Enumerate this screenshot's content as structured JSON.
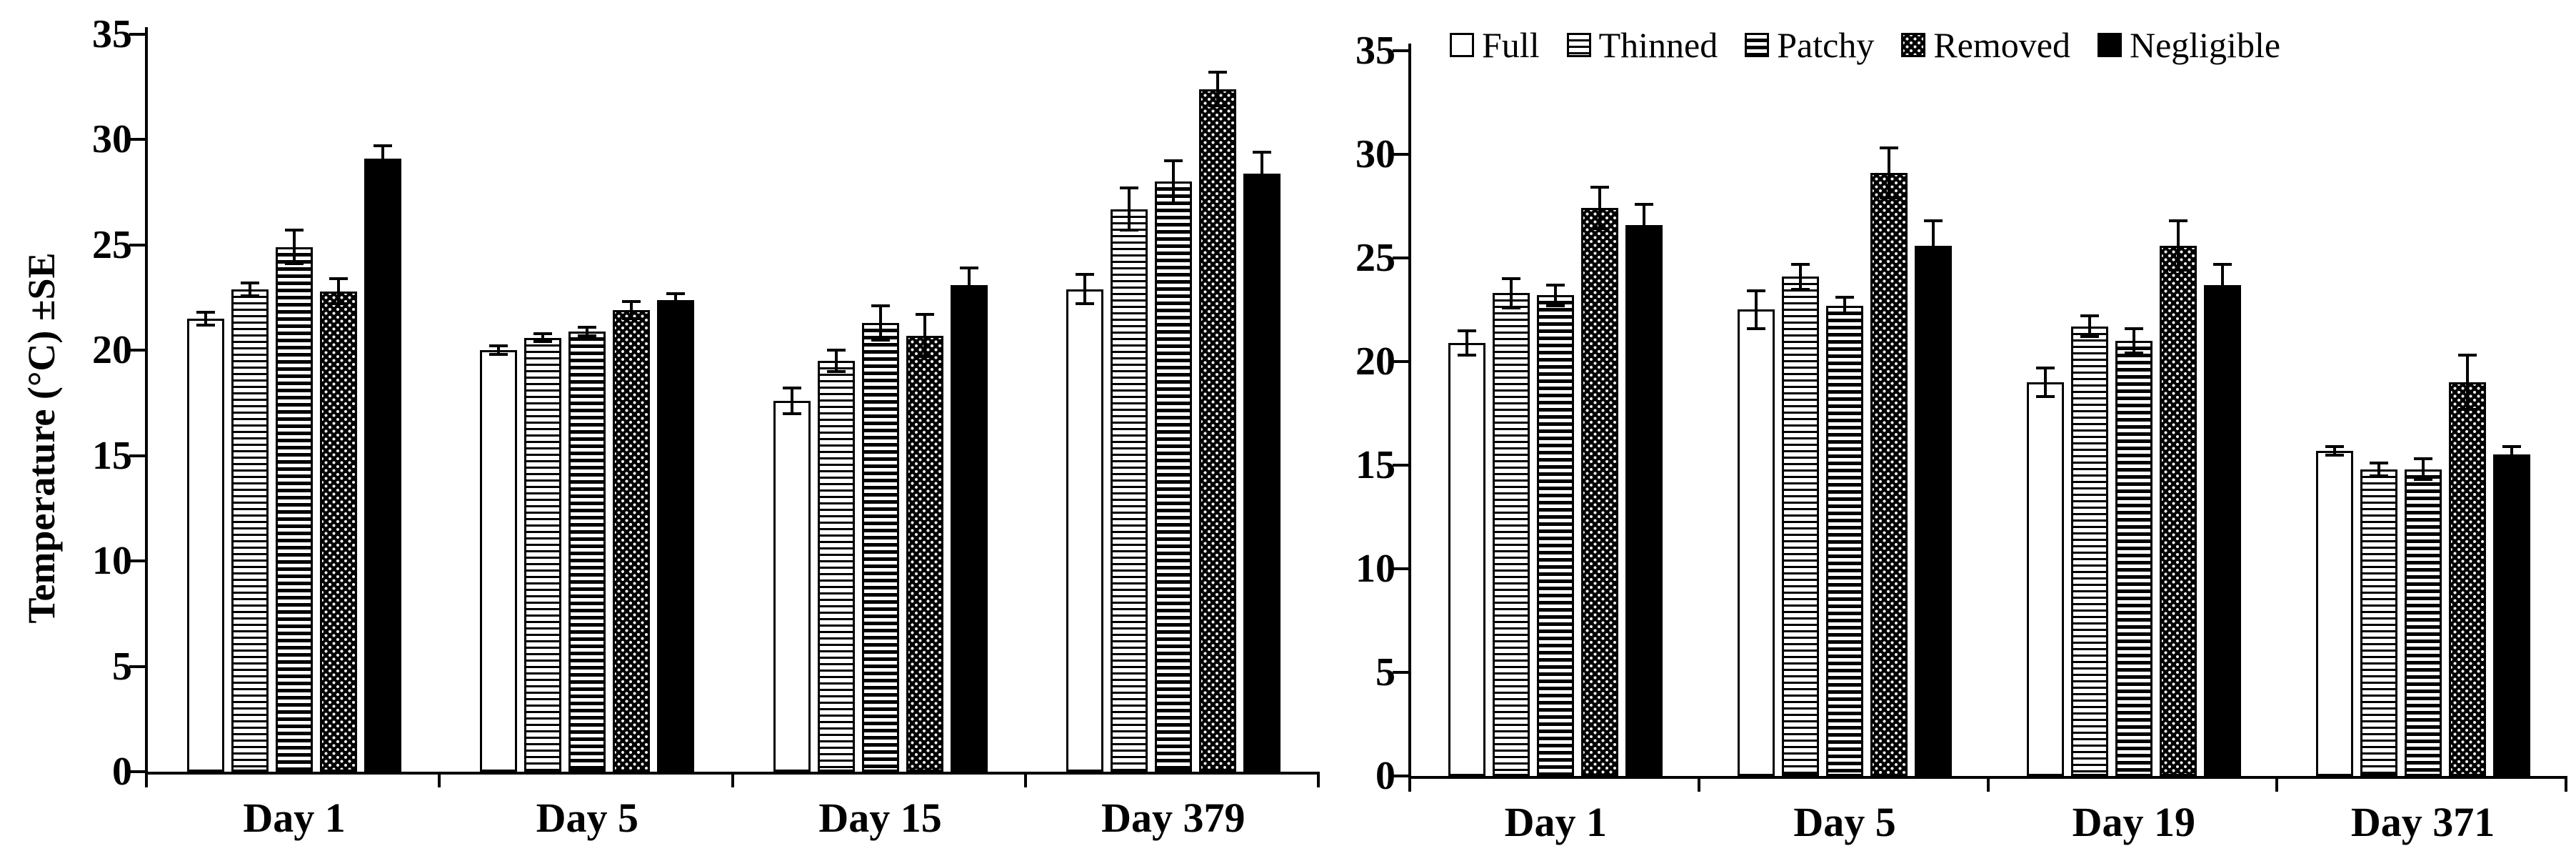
{
  "figure": {
    "ylabel": "Temperature (°C) ±SE",
    "background_color": "#ffffff",
    "ink_color": "#000000",
    "legend": {
      "position": "top-right-panel",
      "entries": [
        {
          "label": "Full",
          "pattern": "open"
        },
        {
          "label": "Thinned",
          "pattern": "h-lines-fine"
        },
        {
          "label": "Patchy",
          "pattern": "h-lines-coarse"
        },
        {
          "label": "Removed",
          "pattern": "dots"
        },
        {
          "label": "Negligible",
          "pattern": "solid"
        }
      ]
    }
  },
  "chart_data": [
    {
      "type": "bar",
      "panel": "left",
      "title": "",
      "xlabel": "",
      "ylabel": "Temperature (°C) ±SE",
      "ylim": [
        0,
        35
      ],
      "yticks": [
        0,
        5,
        10,
        15,
        20,
        25,
        30,
        35
      ],
      "grid": false,
      "error_bars": "±SE",
      "categories": [
        "Day 1",
        "Day 5",
        "Day 15",
        "Day 379"
      ],
      "series": [
        {
          "name": "Full",
          "pattern": "open",
          "values": [
            21.5,
            20.0,
            17.6,
            22.9
          ],
          "se": [
            0.3,
            0.2,
            0.6,
            0.7
          ]
        },
        {
          "name": "Thinned",
          "pattern": "h-lines-fine",
          "values": [
            22.9,
            20.6,
            19.5,
            26.7
          ],
          "se": [
            0.3,
            0.2,
            0.5,
            1.0
          ]
        },
        {
          "name": "Patchy",
          "pattern": "h-lines-coarse",
          "values": [
            24.9,
            20.9,
            21.3,
            28.0
          ],
          "se": [
            0.8,
            0.2,
            0.8,
            1.0
          ]
        },
        {
          "name": "Removed",
          "pattern": "dots",
          "values": [
            22.8,
            21.9,
            20.7,
            32.4
          ],
          "se": [
            0.6,
            0.4,
            1.0,
            0.8
          ]
        },
        {
          "name": "Negligible",
          "pattern": "solid",
          "values": [
            29.1,
            22.4,
            23.1,
            28.4
          ],
          "se": [
            0.6,
            0.3,
            0.8,
            1.0
          ]
        }
      ]
    },
    {
      "type": "bar",
      "panel": "right",
      "title": "",
      "xlabel": "",
      "ylabel": "Temperature (°C) ±SE",
      "ylim": [
        0,
        35
      ],
      "yticks": [
        0,
        5,
        10,
        15,
        20,
        25,
        30,
        35
      ],
      "grid": false,
      "error_bars": "±SE",
      "categories": [
        "Day 1",
        "Day 5",
        "Day 19",
        "Day 371"
      ],
      "series": [
        {
          "name": "Full",
          "pattern": "open",
          "values": [
            20.9,
            22.5,
            19.0,
            15.7
          ],
          "se": [
            0.6,
            0.9,
            0.7,
            0.2
          ]
        },
        {
          "name": "Thinned",
          "pattern": "h-lines-fine",
          "values": [
            23.3,
            24.1,
            21.7,
            14.8
          ],
          "se": [
            0.7,
            0.6,
            0.5,
            0.3
          ]
        },
        {
          "name": "Patchy",
          "pattern": "h-lines-coarse",
          "values": [
            23.2,
            22.7,
            21.0,
            14.8
          ],
          "se": [
            0.5,
            0.4,
            0.6,
            0.5
          ]
        },
        {
          "name": "Removed",
          "pattern": "dots",
          "values": [
            27.4,
            29.1,
            25.6,
            19.0
          ],
          "se": [
            1.0,
            1.2,
            1.2,
            1.3
          ]
        },
        {
          "name": "Negligible",
          "pattern": "solid",
          "values": [
            26.6,
            25.6,
            23.7,
            15.5
          ],
          "se": [
            1.0,
            1.2,
            1.0,
            0.4
          ]
        }
      ]
    }
  ]
}
